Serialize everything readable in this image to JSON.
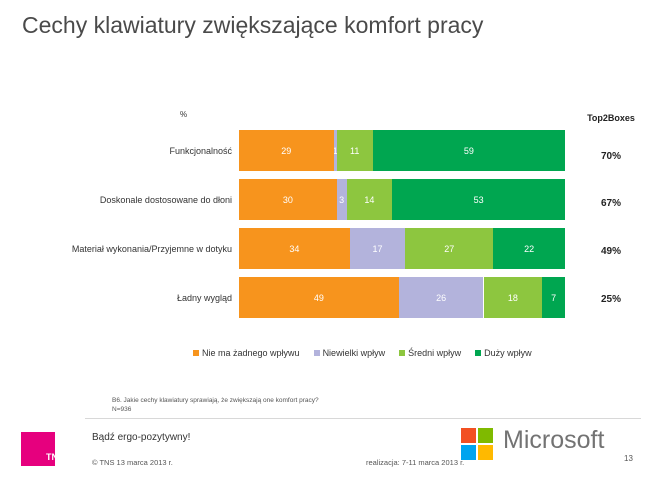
{
  "page_title": "Cechy klawiatury zwiększające komfort pracy",
  "chart_data": {
    "type": "bar",
    "orientation": "horizontal",
    "stacked": true,
    "unit_label": "%",
    "categories": [
      "Funkcjonalność",
      "Doskonale dostosowane do dłoni",
      "Materiał wykonania/Przyjemne w dotyku",
      "Ładny wygląd"
    ],
    "series": [
      {
        "name": "Nie ma żadnego wpływu",
        "color": "#f7941d",
        "values": [
          29,
          30,
          34,
          49
        ]
      },
      {
        "name": "Niewielki wpływ",
        "color": "#b3b3dc",
        "values": [
          1,
          3,
          17,
          26
        ]
      },
      {
        "name": "Średni wpływ",
        "color": "#8dc63f",
        "values": [
          11,
          14,
          27,
          18
        ]
      },
      {
        "name": "Duży wpływ",
        "color": "#00a650",
        "values": [
          59,
          53,
          22,
          7
        ]
      }
    ],
    "value_labels": [
      [
        "29",
        "1",
        "11",
        "59"
      ],
      [
        "30",
        "3",
        "14",
        "53"
      ],
      [
        "34",
        "17",
        "27",
        "22"
      ],
      [
        "49",
        "26",
        "18",
        "7"
      ]
    ],
    "top2boxes_header": "Top2Boxes",
    "top2boxes": [
      "70%",
      "67%",
      "49%",
      "25%"
    ],
    "legend_position": "bottom",
    "grid": false
  },
  "note": {
    "question": "B6. Jakie cechy klawiatury sprawiają, że zwiększają one komfort pracy?",
    "sample": "N=936"
  },
  "footer": {
    "slogan": "Bądź ergo-pozytywny!",
    "copyright": "© TNS   13 marca 2013 r.",
    "realizacja": "realizacja: 7-11 marca 2013 r.",
    "page_number": "13",
    "tns_logo_text": "TNS",
    "microsoft_logo_text": "Microsoft"
  },
  "colors": {
    "tns_magenta": "#e6007e",
    "ms_red": "#f25022",
    "ms_green": "#7fba00",
    "ms_blue": "#00a4ef",
    "ms_yellow": "#ffb900"
  }
}
